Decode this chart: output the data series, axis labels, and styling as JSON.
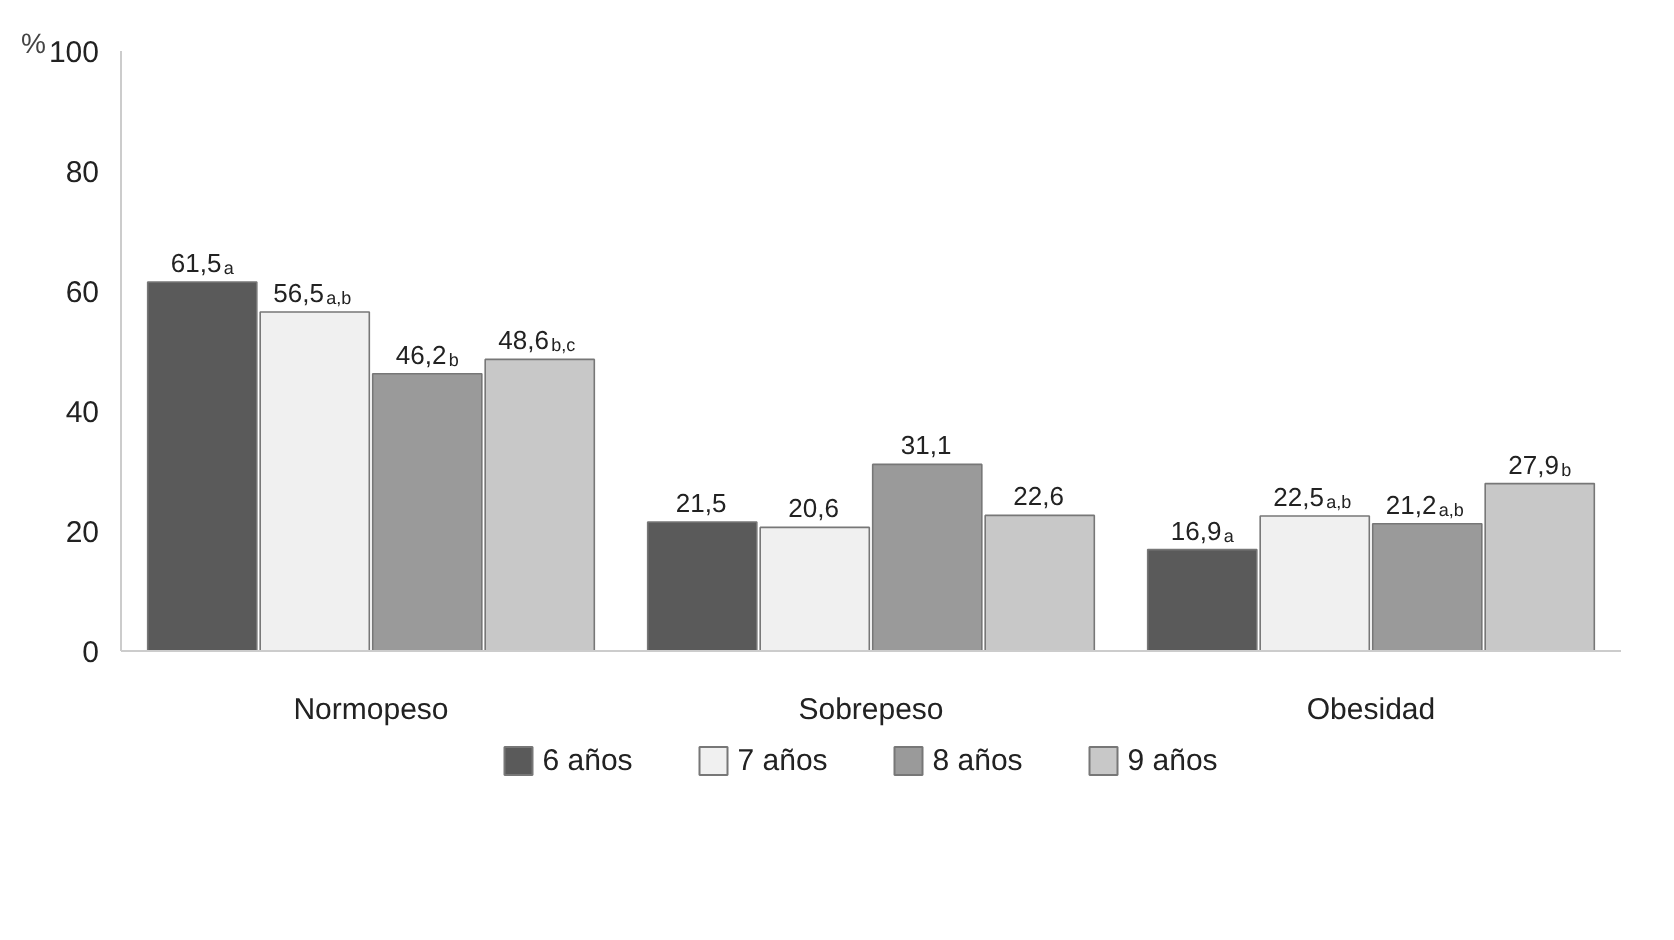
{
  "chart_data": {
    "type": "bar",
    "ylabel": "%",
    "categories": [
      "Normopeso",
      "Sobrepeso",
      "Obesidad"
    ],
    "series": [
      {
        "name": "6 años",
        "color": "#5a5a5a",
        "values": [
          61.5,
          21.5,
          16.9
        ],
        "value_labels": [
          "61,5$_{a}$",
          "21,5",
          "16,9$_{a}$"
        ]
      },
      {
        "name": "7 años",
        "color": "#f0f0f0",
        "values": [
          56.5,
          20.6,
          22.5
        ],
        "value_labels": [
          "56,5$_{a,b}$",
          "20,6",
          "22,5$_{a,b}$"
        ]
      },
      {
        "name": "8 años",
        "color": "#9a9a9a",
        "values": [
          46.2,
          31.1,
          21.2
        ],
        "value_labels": [
          "46,2$_{b}$",
          "31,1",
          "21,2$_{a,b}$"
        ]
      },
      {
        "name": "9 años",
        "color": "#c8c8c8",
        "values": [
          48.6,
          22.6,
          27.9
        ],
        "value_labels": [
          "48,6$_{b,c}$",
          "22,6",
          "27,9$_{b}$"
        ]
      }
    ],
    "ylim": [
      0,
      100
    ],
    "yticks": [
      0,
      20,
      40,
      60,
      80,
      100
    ],
    "grid": false,
    "legend": "bottom"
  }
}
